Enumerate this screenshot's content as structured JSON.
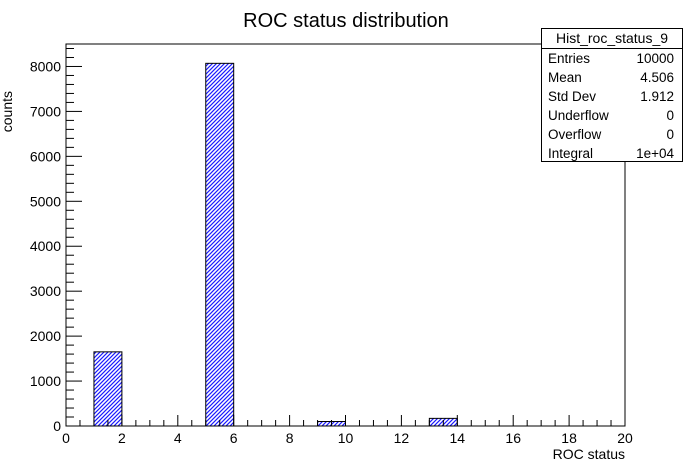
{
  "chart_data": {
    "type": "bar",
    "title": "ROC status distribution",
    "xlabel": "ROC status",
    "ylabel": "counts",
    "xlim": [
      0,
      20
    ],
    "ylim": [
      0,
      8500
    ],
    "bin_width": 1,
    "x_ticks": [
      0,
      2,
      4,
      6,
      8,
      10,
      12,
      14,
      16,
      18,
      20
    ],
    "y_ticks": [
      0,
      1000,
      2000,
      3000,
      4000,
      5000,
      6000,
      7000,
      8000
    ],
    "grid": false,
    "bars": [
      {
        "x": 1,
        "value": 1650
      },
      {
        "x": 5,
        "value": 8070
      },
      {
        "x": 9,
        "value": 100
      },
      {
        "x": 13,
        "value": 170
      }
    ],
    "fill_color": "#1a1aff",
    "stats": {
      "name": "Hist_roc_status_9",
      "rows": [
        {
          "label": "Entries",
          "value": "10000"
        },
        {
          "label": "Mean",
          "value": "4.506"
        },
        {
          "label": "Std Dev",
          "value": "1.912"
        },
        {
          "label": "Underflow",
          "value": "0"
        },
        {
          "label": "Overflow",
          "value": "0"
        },
        {
          "label": "Integral",
          "value": "1e+04"
        }
      ]
    }
  }
}
